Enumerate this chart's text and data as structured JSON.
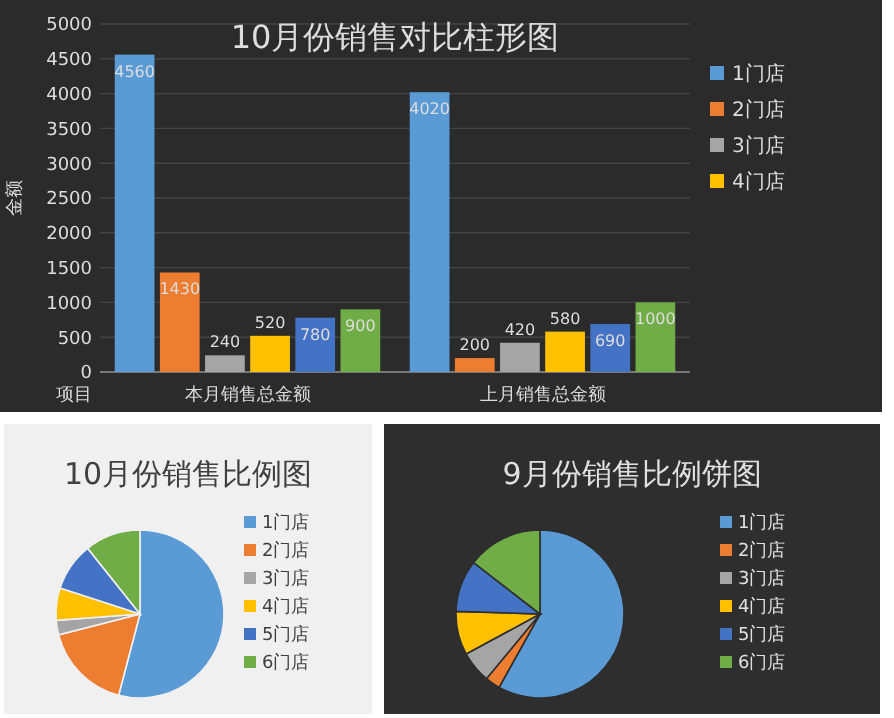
{
  "chart_data": [
    {
      "type": "bar",
      "title": "10月份销售对比柱形图",
      "xlabel": "项目",
      "ylabel": "金额",
      "categories": [
        "本月销售总金额",
        "上月销售总金额"
      ],
      "series": [
        {
          "name": "1门店",
          "color": "#5b9bd5",
          "values": [
            4560,
            4020
          ]
        },
        {
          "name": "2门店",
          "color": "#ed7d31",
          "values": [
            1430,
            200
          ]
        },
        {
          "name": "3门店",
          "color": "#a5a5a5",
          "values": [
            240,
            420
          ]
        },
        {
          "name": "4门店",
          "color": "#ffc000",
          "values": [
            520,
            580
          ]
        },
        {
          "color": "#4472c4",
          "values": [
            780,
            690
          ]
        },
        {
          "color": "#70ad47",
          "values": [
            900,
            1000
          ]
        }
      ],
      "ylim": [
        0,
        5000
      ],
      "yticks": [
        0,
        500,
        1000,
        1500,
        2000,
        2500,
        3000,
        3500,
        4000,
        4500,
        5000
      ],
      "grid": "y",
      "legend": "right",
      "data_labels": true
    },
    {
      "type": "pie",
      "title": "10月份销售比例图",
      "categories": [
        "1门店",
        "2门店",
        "3门店",
        "4门店",
        "5门店",
        "6门店"
      ],
      "values": [
        54.1,
        16.9,
        2.8,
        6.2,
        9.3,
        10.7
      ],
      "colors": [
        "#5b9bd5",
        "#ed7d31",
        "#a5a5a5",
        "#ffc000",
        "#4472c4",
        "#70ad47"
      ],
      "legend": "right"
    },
    {
      "type": "pie",
      "title": "9月份销售比例饼图",
      "categories": [
        "1门店",
        "2门店",
        "3门店",
        "4门店",
        "5门店",
        "6门店"
      ],
      "values": [
        58.1,
        2.9,
        6.1,
        8.4,
        10.0,
        14.5
      ],
      "colors": [
        "#5b9bd5",
        "#ed7d31",
        "#a5a5a5",
        "#ffc000",
        "#4472c4",
        "#70ad47"
      ],
      "legend": "right"
    }
  ]
}
